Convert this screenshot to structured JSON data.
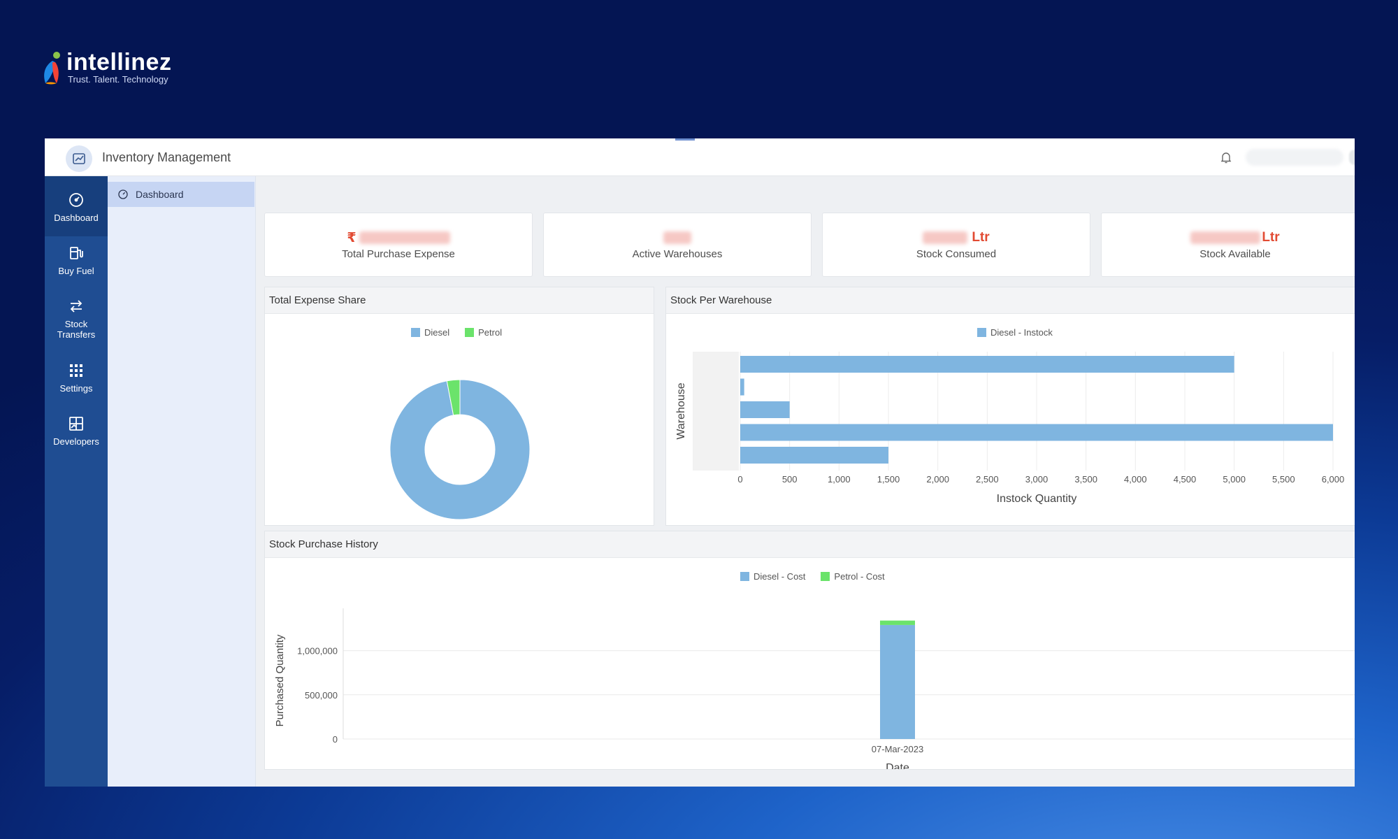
{
  "brand": {
    "name": "intellinez",
    "tagline": "Trust. Talent. Technology"
  },
  "header": {
    "title": "Inventory Management"
  },
  "rail": [
    {
      "label": "Dashboard",
      "icon": "dashboard-gauge-icon"
    },
    {
      "label": "Buy Fuel",
      "icon": "fuel-pump-icon"
    },
    {
      "label": "Stock Transfers",
      "line1": "Stock",
      "line2": "Transfers",
      "icon": "transfer-arrows-icon"
    },
    {
      "label": "Settings",
      "icon": "settings-grid-icon"
    },
    {
      "label": "Developers",
      "icon": "developers-chart-icon"
    }
  ],
  "subnav": {
    "active": "Dashboard"
  },
  "stats": [
    {
      "prefix": "₹",
      "suffix": "",
      "label": "Total Purchase Expense"
    },
    {
      "prefix": "",
      "suffix": "",
      "label": "Active Warehouses"
    },
    {
      "prefix": "",
      "suffix": "Ltr",
      "label": "Stock Consumed"
    },
    {
      "prefix": "",
      "suffix": "Ltr",
      "label": "Stock Available"
    }
  ],
  "panels": {
    "expense": {
      "title": "Total Expense Share"
    },
    "warehouse": {
      "title": "Stock Per Warehouse"
    },
    "history": {
      "title": "Stock Purchase History"
    }
  },
  "colors": {
    "diesel": "#7fb5e0",
    "petrol": "#6be36b",
    "accent": "#1f4d92",
    "stat_value": "#e24a32"
  },
  "chart_data": [
    {
      "type": "pie",
      "subtype": "donut",
      "title": "Total Expense Share",
      "legend": [
        "Diesel",
        "Petrol"
      ],
      "legend_position": "top",
      "slices": [
        {
          "label": "Diesel",
          "value": 97
        },
        {
          "label": "Petrol",
          "value": 3
        }
      ]
    },
    {
      "type": "bar",
      "orientation": "horizontal",
      "title": "Stock Per Warehouse",
      "legend_position": "top",
      "series": [
        {
          "name": "Diesel - Instock",
          "values": [
            5000,
            40,
            500,
            6000,
            1500
          ]
        }
      ],
      "categories": [
        "",
        "",
        "",
        "",
        ""
      ],
      "xlabel": "Instock Quantity",
      "ylabel": "Warehouse",
      "xlim": [
        0,
        6000
      ],
      "xticks": [
        "0",
        "500",
        "1,000",
        "1,500",
        "2,000",
        "2,500",
        "3,000",
        "3,500",
        "4,000",
        "4,500",
        "5,000",
        "5,500",
        "6,000"
      ],
      "grid": true
    },
    {
      "type": "bar",
      "stacked": true,
      "title": "Stock Purchase History",
      "legend_position": "top",
      "categories": [
        "07-Mar-2023"
      ],
      "series": [
        {
          "name": "Diesel - Cost",
          "values": [
            1290000
          ]
        },
        {
          "name": "Petrol - Cost",
          "values": [
            50000
          ]
        }
      ],
      "xlabel": "Date",
      "ylabel": "Purchased Quantity",
      "ylim": [
        0,
        1400000
      ],
      "yticks": [
        "0",
        "500,000",
        "1,000,000"
      ],
      "grid": true
    }
  ]
}
